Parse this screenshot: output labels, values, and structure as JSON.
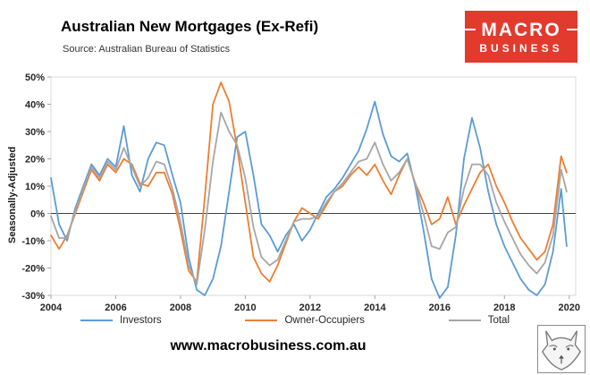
{
  "header": {
    "title": "Australian New Mortgages (Ex-Refi)",
    "source": "Source: Australian Bureau of Statistics"
  },
  "logo": {
    "top": "MACRO",
    "bottom": "BUSINESS",
    "bg_color": "#e23b2e"
  },
  "footer": {
    "url": "www.macrobusiness.com.au"
  },
  "chart_data": {
    "type": "line",
    "title": "Australian New Mortgages (Ex-Refi)",
    "subtitle": "Source: Australian Bureau of Statistics",
    "xlabel": "",
    "ylabel": "Seasonally-Adjusted",
    "xlim": [
      2004,
      2020.2
    ],
    "ylim": [
      -30,
      50
    ],
    "x_ticks": [
      2004,
      2006,
      2008,
      2010,
      2012,
      2014,
      2016,
      2018,
      2020
    ],
    "y_ticks": [
      50,
      40,
      30,
      20,
      10,
      0,
      -10,
      -20,
      -30
    ],
    "y_tick_suffix": "%",
    "grid": false,
    "legend_position": "bottom",
    "zero_line_color": "#404040",
    "x": [
      2004,
      2004.25,
      2004.5,
      2004.75,
      2005,
      2005.25,
      2005.5,
      2005.75,
      2006,
      2006.25,
      2006.5,
      2006.75,
      2007,
      2007.25,
      2007.5,
      2007.75,
      2008,
      2008.25,
      2008.5,
      2008.75,
      2009,
      2009.25,
      2009.5,
      2009.75,
      2010,
      2010.25,
      2010.5,
      2010.75,
      2011,
      2011.25,
      2011.5,
      2011.75,
      2012,
      2012.25,
      2012.5,
      2012.75,
      2013,
      2013.25,
      2013.5,
      2013.75,
      2014,
      2014.25,
      2014.5,
      2014.75,
      2015,
      2015.25,
      2015.5,
      2015.75,
      2016,
      2016.25,
      2016.5,
      2016.75,
      2017,
      2017.25,
      2017.5,
      2017.75,
      2018,
      2018.25,
      2018.5,
      2018.75,
      2019,
      2019.25,
      2019.5,
      2019.75,
      2019.92
    ],
    "series": [
      {
        "name": "Investors",
        "color": "#5b9bd5",
        "values": [
          13,
          -4,
          -10,
          2,
          10,
          18,
          14,
          20,
          17,
          32,
          14,
          8,
          20,
          26,
          25,
          14,
          4,
          -16,
          -28,
          -30,
          -24,
          -12,
          8,
          28,
          30,
          14,
          -4,
          -8,
          -14,
          -8,
          -4,
          -10,
          -6,
          0,
          6,
          9,
          13,
          18,
          23,
          31,
          41,
          29,
          21,
          19,
          22,
          10,
          -6,
          -24,
          -31,
          -27,
          -8,
          20,
          35,
          24,
          8,
          -4,
          -12,
          -18,
          -24,
          -28,
          -30,
          -26,
          -14,
          9,
          -12
        ]
      },
      {
        "name": "Owner-Occupiers",
        "color": "#ed7d31",
        "values": [
          -8,
          -13,
          -8,
          0,
          8,
          16,
          12,
          18,
          15,
          20,
          18,
          11,
          10,
          15,
          15,
          7,
          -6,
          -21,
          -25,
          6,
          40,
          48,
          41,
          24,
          4,
          -16,
          -22,
          -25,
          -19,
          -11,
          -3,
          2,
          0,
          -2,
          3,
          8,
          10,
          14,
          17,
          14,
          18,
          12,
          7,
          14,
          20,
          11,
          4,
          -4,
          -2,
          6,
          -4,
          3,
          9,
          15,
          18,
          10,
          4,
          -3,
          -9,
          -13,
          -17,
          -14,
          -4,
          21,
          15
        ]
      },
      {
        "name": "Total",
        "color": "#a6a6a6",
        "values": [
          -1,
          -9,
          -9,
          1,
          9,
          17,
          13,
          19,
          16,
          24,
          17,
          10,
          13,
          19,
          18,
          9,
          -3,
          -19,
          -26,
          -6,
          19,
          37,
          30,
          25,
          13,
          -5,
          -16,
          -19,
          -17,
          -10,
          -3,
          -2,
          -2,
          -1,
          4,
          8,
          11,
          15,
          19,
          20,
          26,
          18,
          12,
          15,
          20,
          11,
          0,
          -12,
          -13,
          -7,
          -5,
          9,
          18,
          18,
          14,
          4,
          -3,
          -9,
          -15,
          -19,
          -22,
          -18,
          -8,
          16,
          8
        ]
      }
    ]
  }
}
